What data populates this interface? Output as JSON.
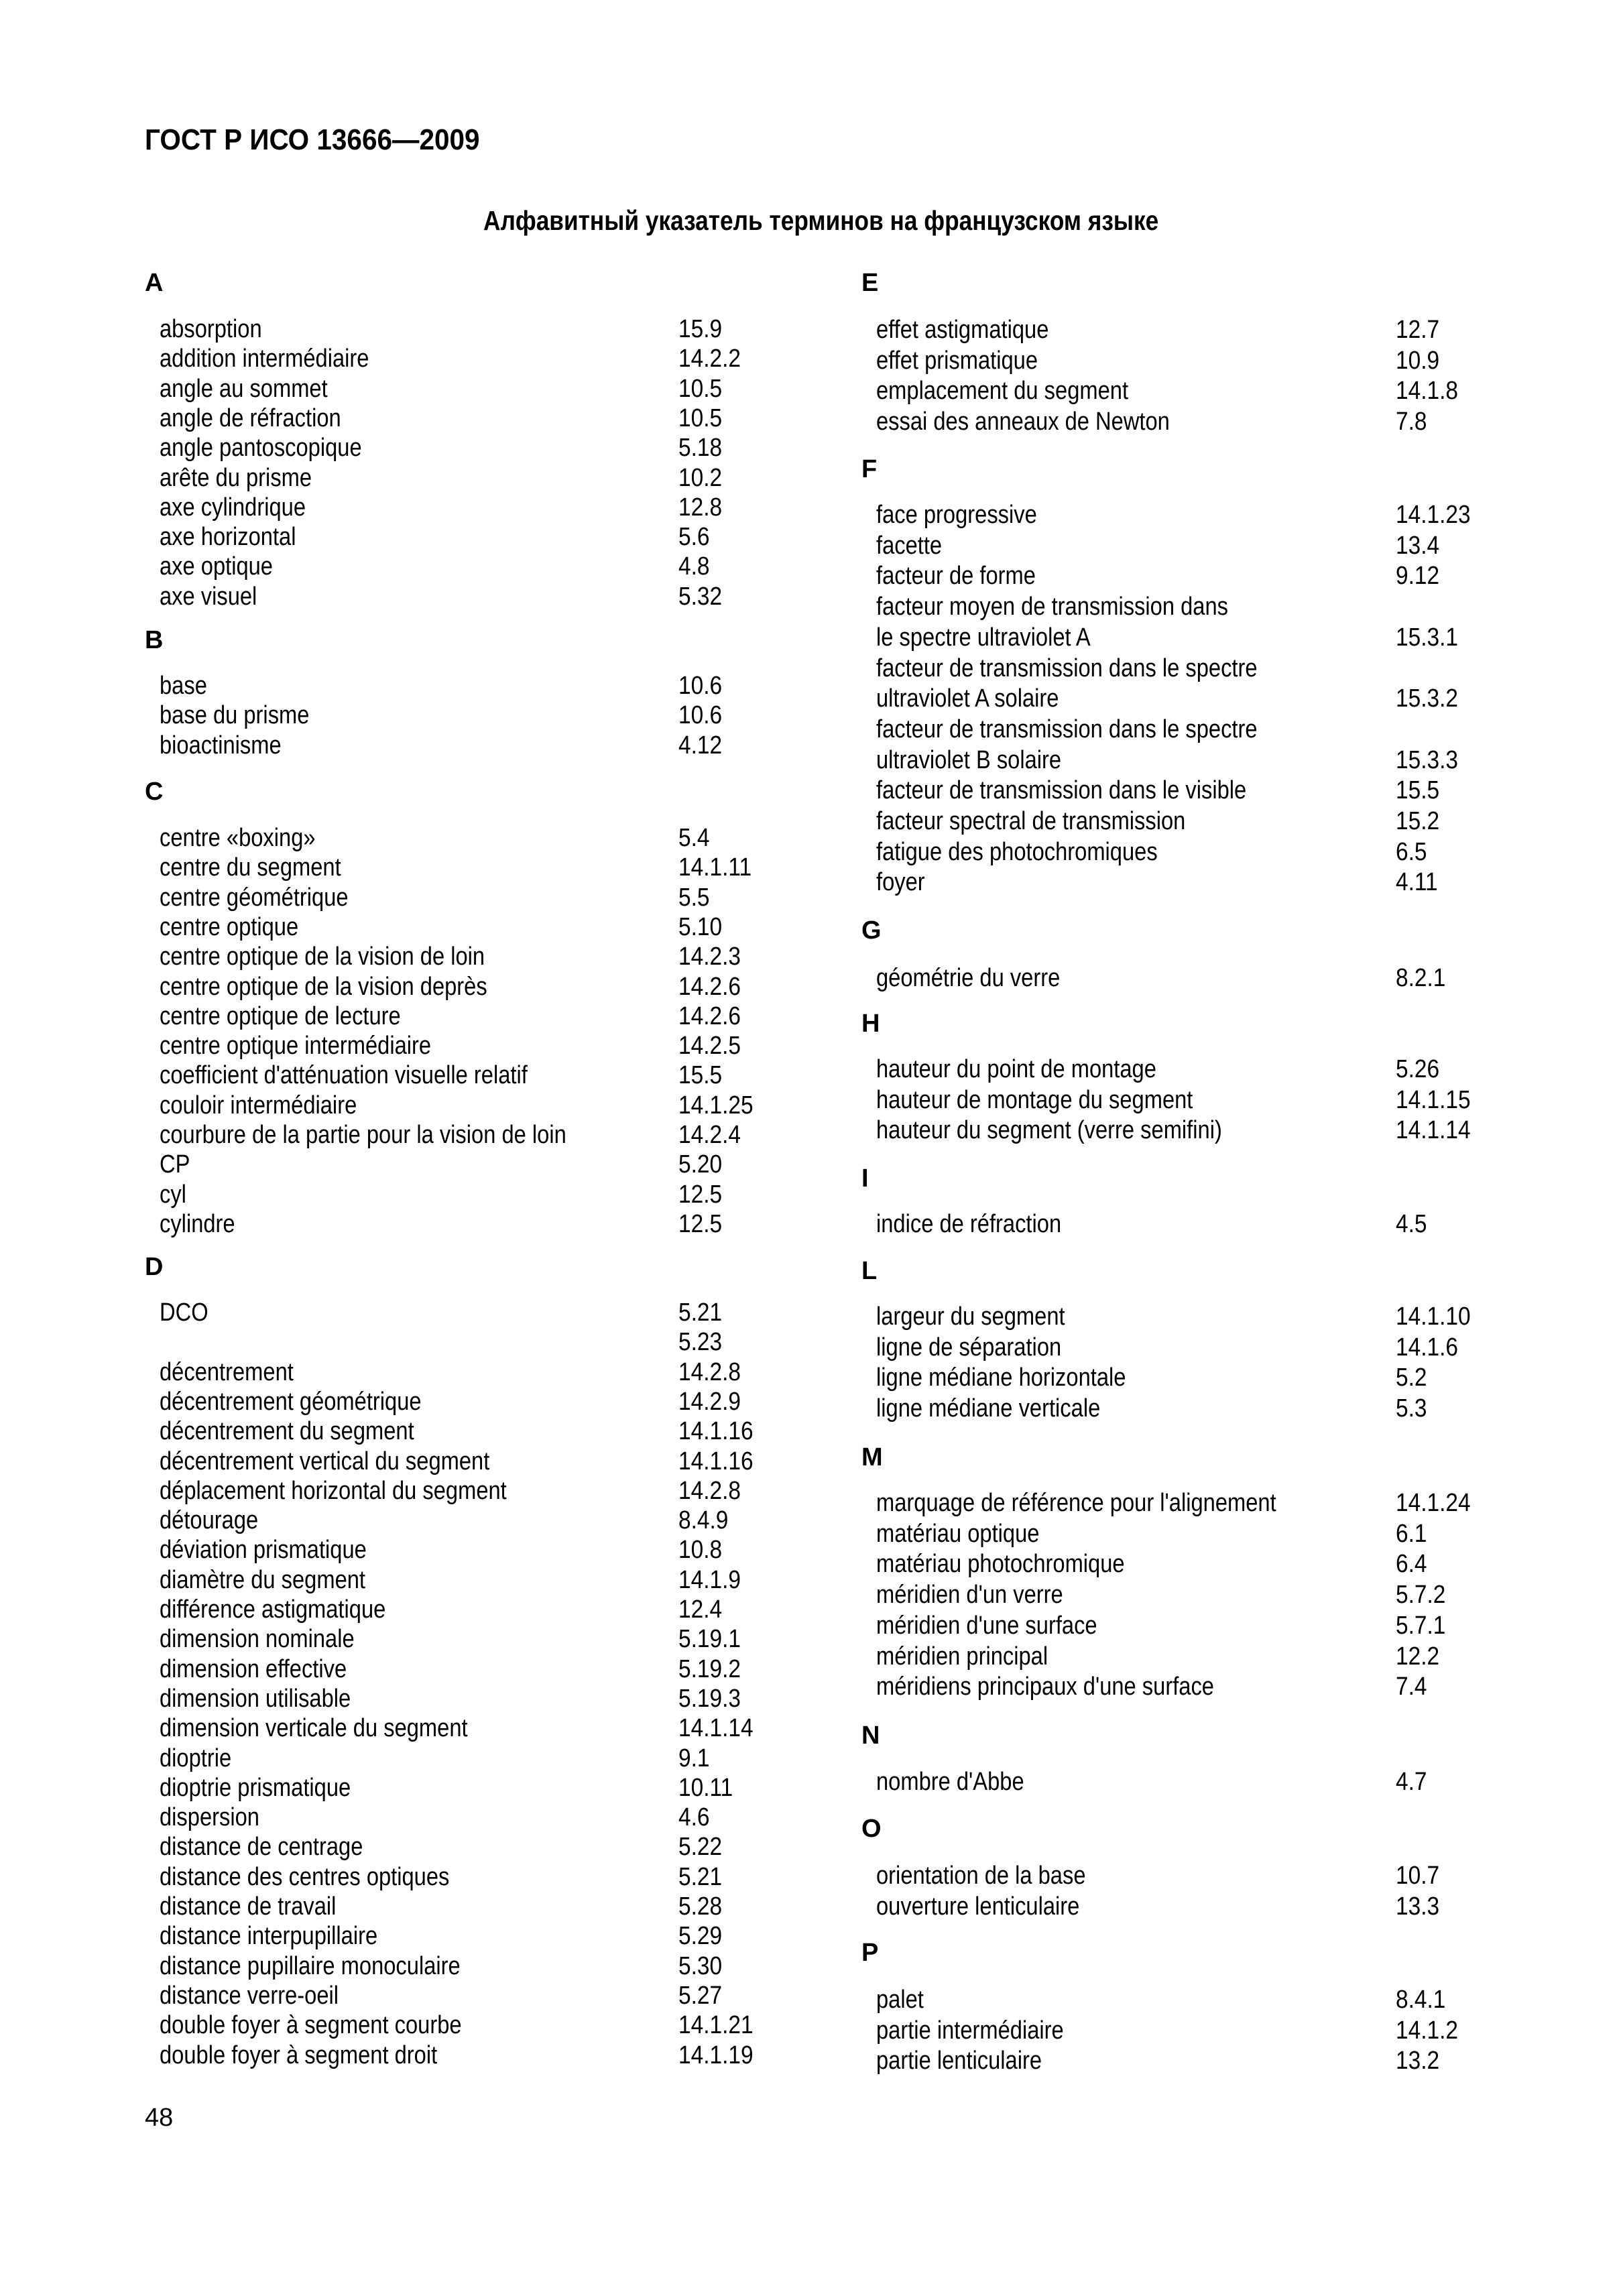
{
  "header": {
    "doc_code": "ГОСТ Р ИСО 13666—2009"
  },
  "title": "Алфавитный указатель терминов на французском языке",
  "page_number": "48",
  "columns": [
    [
      {
        "letter": "A",
        "items": [
          {
            "term": "absorption",
            "ref": "15.9"
          },
          {
            "term": "addition intermédiaire",
            "ref": "14.2.2"
          },
          {
            "term": "angle au sommet",
            "ref": "10.5"
          },
          {
            "term": "angle de réfraction",
            "ref": "10.5"
          },
          {
            "term": "angle pantoscopique",
            "ref": "5.18"
          },
          {
            "term": "arête du prisme",
            "ref": "10.2"
          },
          {
            "term": "axe cylindrique",
            "ref": "12.8"
          },
          {
            "term": "axe horizontal",
            "ref": "5.6"
          },
          {
            "term": "axe optique",
            "ref": "4.8"
          },
          {
            "term": "axe visuel",
            "ref": "5.32"
          }
        ]
      },
      {
        "letter": "B",
        "items": [
          {
            "term": "base",
            "ref": "10.6"
          },
          {
            "term": "base du prisme",
            "ref": "10.6"
          },
          {
            "term": "bioactinisme",
            "ref": "4.12"
          }
        ]
      },
      {
        "letter": "C",
        "items": [
          {
            "term": "centre «boxing»",
            "ref": "5.4"
          },
          {
            "term": "centre du segment",
            "ref": "14.1.11"
          },
          {
            "term": "centre géométrique",
            "ref": "5.5"
          },
          {
            "term": "centre optique",
            "ref": "5.10"
          },
          {
            "term": "centre optique de la vision de loin",
            "ref": "14.2.3"
          },
          {
            "term": "centre optique de la vision deprès",
            "ref": "14.2.6"
          },
          {
            "term": "centre optique de lecture",
            "ref": "14.2.6"
          },
          {
            "term": "centre optique intermédiaire",
            "ref": "14.2.5"
          },
          {
            "term": "coefficient d'atténuation visuelle relatif",
            "ref": "15.5"
          },
          {
            "term": "couloir intermédiaire",
            "ref": "14.1.25"
          },
          {
            "term": "courbure de la partie pour la vision de loin",
            "ref": "14.2.4"
          },
          {
            "term": "CP",
            "ref": "5.20"
          },
          {
            "term": "cyl",
            "ref": "12.5"
          },
          {
            "term": "cylindre",
            "ref": "12.5"
          }
        ]
      },
      {
        "letter": "D",
        "items": [
          {
            "term": "DCO",
            "ref": "5.21"
          },
          {
            "term": "",
            "ref": "5.23"
          },
          {
            "term": "décentrement",
            "ref": "14.2.8"
          },
          {
            "term": "décentrement géométrique",
            "ref": "14.2.9"
          },
          {
            "term": "décentrement du segment",
            "ref": "14.1.16"
          },
          {
            "term": "décentrement vertical du segment",
            "ref": "14.1.16"
          },
          {
            "term": "déplacement horizontal du segment",
            "ref": "14.2.8"
          },
          {
            "term": "détourage",
            "ref": "8.4.9"
          },
          {
            "term": "déviation prismatique",
            "ref": "10.8"
          },
          {
            "term": "diamètre du segment",
            "ref": "14.1.9"
          },
          {
            "term": "différence astigmatique",
            "ref": "12.4"
          },
          {
            "term": "dimension nominale",
            "ref": "5.19.1"
          },
          {
            "term": "dimension effective",
            "ref": "5.19.2"
          },
          {
            "term": "dimension utilisable",
            "ref": "5.19.3"
          },
          {
            "term": "dimension verticale du segment",
            "ref": "14.1.14"
          },
          {
            "term": "dioptrie",
            "ref": "9.1"
          },
          {
            "term": "dioptrie prismatique",
            "ref": "10.11"
          },
          {
            "term": "dispersion",
            "ref": "4.6"
          },
          {
            "term": "distance de centrage",
            "ref": "5.22"
          },
          {
            "term": "distance des centres optiques",
            "ref": "5.21"
          },
          {
            "term": "distance de travail",
            "ref": "5.28"
          },
          {
            "term": "distance interpupillaire",
            "ref": "5.29"
          },
          {
            "term": "distance pupillaire monoculaire",
            "ref": "5.30"
          },
          {
            "term": "distance verre-oeil",
            "ref": "5.27"
          },
          {
            "term": "double foyer à segment courbe",
            "ref": "14.1.21"
          },
          {
            "term": "double foyer à segment droit",
            "ref": "14.1.19"
          }
        ]
      }
    ],
    [
      {
        "letter": "E",
        "items": [
          {
            "term": "effet astigmatique",
            "ref": "12.7"
          },
          {
            "term": "effet prismatique",
            "ref": "10.9"
          },
          {
            "term": "emplacement du segment",
            "ref": "14.1.8"
          },
          {
            "term": "essai des anneaux de Newton",
            "ref": "7.8"
          }
        ]
      },
      {
        "letter": "F",
        "items": [
          {
            "term": "face progressive",
            "ref": "14.1.23"
          },
          {
            "term": "facette",
            "ref": "13.4"
          },
          {
            "term": "facteur de forme",
            "ref": "9.12"
          },
          {
            "term": "facteur moyen de transmission dans",
            "ref": ""
          },
          {
            "term": "le spectre ultraviolet A",
            "ref": "15.3.1"
          },
          {
            "term": "facteur de transmission dans le spectre",
            "ref": ""
          },
          {
            "term": "ultraviolet A solaire",
            "ref": "15.3.2"
          },
          {
            "term": "facteur de transmission dans le spectre",
            "ref": ""
          },
          {
            "term": "ultraviolet B solaire",
            "ref": "15.3.3"
          },
          {
            "term": "facteur de transmission dans le visible",
            "ref": "15.5"
          },
          {
            "term": "facteur spectral de transmission",
            "ref": "15.2"
          },
          {
            "term": "fatigue des photochromiques",
            "ref": "6.5"
          },
          {
            "term": "foyer",
            "ref": "4.11"
          }
        ]
      },
      {
        "letter": "G",
        "items": [
          {
            "term": "géométrie du verre",
            "ref": "8.2.1"
          }
        ]
      },
      {
        "letter": "H",
        "items": [
          {
            "term": "hauteur du point de montage",
            "ref": "5.26"
          },
          {
            "term": "hauteur de montage du segment",
            "ref": "14.1.15"
          },
          {
            "term": "hauteur du segment (verre semifini)",
            "ref": "14.1.14"
          }
        ]
      },
      {
        "letter": "I",
        "items": [
          {
            "term": "indice de réfraction",
            "ref": "4.5"
          }
        ]
      },
      {
        "letter": "L",
        "items": [
          {
            "term": "largeur du segment",
            "ref": "14.1.10"
          },
          {
            "term": "ligne de séparation",
            "ref": "14.1.6"
          },
          {
            "term": "ligne médiane horizontale",
            "ref": "5.2"
          },
          {
            "term": "ligne médiane verticale",
            "ref": "5.3"
          }
        ]
      },
      {
        "letter": "M",
        "items": [
          {
            "term": "marquage de référence pour l'alignement",
            "ref": "14.1.24"
          },
          {
            "term": "matériau optique",
            "ref": "6.1"
          },
          {
            "term": "matériau photochromique",
            "ref": "6.4"
          },
          {
            "term": "méridien d'un verre",
            "ref": "5.7.2"
          },
          {
            "term": "méridien d'une surface",
            "ref": "5.7.1"
          },
          {
            "term": "méridien principal",
            "ref": "12.2"
          },
          {
            "term": "méridiens principaux d'une surface",
            "ref": "7.4"
          }
        ]
      },
      {
        "letter": "N",
        "items": [
          {
            "term": "nombre d'Abbe",
            "ref": "4.7"
          }
        ]
      },
      {
        "letter": "O",
        "items": [
          {
            "term": "orientation de la base",
            "ref": "10.7"
          },
          {
            "term": "ouverture lenticulaire",
            "ref": "13.3"
          }
        ]
      },
      {
        "letter": "P",
        "items": [
          {
            "term": "palet",
            "ref": "8.4.1"
          },
          {
            "term": "partie intermédiaire",
            "ref": "14.1.2"
          },
          {
            "term": "partie lenticulaire",
            "ref": "13.2"
          }
        ]
      }
    ]
  ]
}
